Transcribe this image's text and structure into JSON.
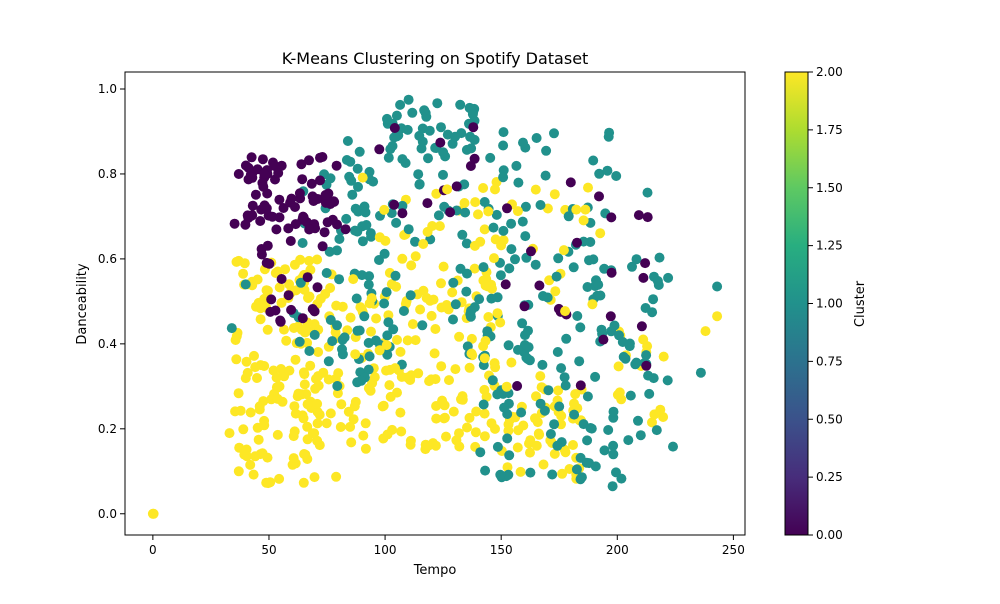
{
  "chart_data": {
    "type": "scatter",
    "title": "K-Means Clustering on Spotify Dataset",
    "xlabel": "Tempo",
    "ylabel": "Danceability",
    "xlim": [
      -12,
      255
    ],
    "ylim": [
      -0.05,
      1.04
    ],
    "x_ticks": [
      0,
      50,
      100,
      150,
      200,
      250
    ],
    "x_tick_labels": [
      "0",
      "50",
      "100",
      "150",
      "200",
      "250"
    ],
    "y_ticks": [
      0.0,
      0.2,
      0.4,
      0.6,
      0.8,
      1.0
    ],
    "y_tick_labels": [
      "0.0",
      "0.2",
      "0.4",
      "0.6",
      "0.8",
      "1.0"
    ],
    "grid": false,
    "legend": "none",
    "colorbar": {
      "label": "Cluster",
      "min": 0.0,
      "max": 2.0,
      "ticks": [
        0.0,
        0.25,
        0.5,
        0.75,
        1.0,
        1.25,
        1.5,
        1.75,
        2.0
      ],
      "tick_labels": [
        "0.00",
        "0.25",
        "0.50",
        "0.75",
        "1.00",
        "1.25",
        "1.50",
        "1.75",
        "2.00"
      ],
      "colormap": "viridis"
    },
    "cluster_colors": [
      "#440154",
      "#21918c",
      "#fde725"
    ],
    "clusters": [
      {
        "id": 0,
        "regions": [
          {
            "x_range": [
              35,
              80
            ],
            "y_range": [
              0.68,
              0.84
            ],
            "weight": 70
          },
          {
            "x_range": [
              45,
              75
            ],
            "y_range": [
              0.45,
              0.68
            ],
            "weight": 25
          },
          {
            "x_range": [
              150,
              215
            ],
            "y_range": [
              0.3,
              0.78
            ],
            "weight": 20
          },
          {
            "x_range": [
              90,
              140
            ],
            "y_range": [
              0.7,
              0.92
            ],
            "weight": 10
          }
        ],
        "points": [
          [
            138,
            0.91
          ],
          [
            83,
            0.67
          ],
          [
            128,
            0.71
          ],
          [
            180,
            0.78
          ],
          [
            212,
            0.59
          ],
          [
            194,
            0.41
          ],
          [
            73,
            0.84
          ],
          [
            48,
            0.8
          ]
        ]
      },
      {
        "id": 1,
        "regions": [
          {
            "x_range": [
              80,
              200
            ],
            "y_range": [
              0.35,
              0.92
            ],
            "weight": 160
          },
          {
            "x_range": [
              100,
              140
            ],
            "y_range": [
              0.85,
              0.98
            ],
            "weight": 40
          },
          {
            "x_range": [
              140,
              210
            ],
            "y_range": [
              0.08,
              0.45
            ],
            "weight": 80
          },
          {
            "x_range": [
              60,
              100
            ],
            "y_range": [
              0.3,
              0.85
            ],
            "weight": 50
          },
          {
            "x_range": [
              200,
              222
            ],
            "y_range": [
              0.15,
              0.65
            ],
            "weight": 20
          }
        ],
        "points": [
          [
            243,
            0.535
          ],
          [
            236,
            0.332
          ],
          [
            224,
            0.158
          ],
          [
            213,
            0.756
          ],
          [
            34,
            0.437
          ],
          [
            40,
            0.54
          ],
          [
            217,
            0.197
          ],
          [
            198,
            0.065
          ]
        ]
      },
      {
        "id": 2,
        "regions": [
          {
            "x_range": [
              35,
              80
            ],
            "y_range": [
              0.07,
              0.6
            ],
            "weight": 170
          },
          {
            "x_range": [
              80,
              150
            ],
            "y_range": [
              0.15,
              0.55
            ],
            "weight": 120
          },
          {
            "x_range": [
              150,
              185
            ],
            "y_range": [
              0.08,
              0.3
            ],
            "weight": 50
          },
          {
            "x_range": [
              100,
              180
            ],
            "y_range": [
              0.5,
              0.8
            ],
            "weight": 30
          },
          {
            "x_range": [
              200,
              222
            ],
            "y_range": [
              0.2,
              0.45
            ],
            "weight": 15
          }
        ],
        "points": [
          [
            0,
            0.0
          ],
          [
            0.3,
            0.0
          ],
          [
            243,
            0.465
          ],
          [
            238,
            0.43
          ],
          [
            220,
            0.37
          ],
          [
            36,
            0.593
          ],
          [
            33,
            0.19
          ],
          [
            37,
            0.1
          ]
        ]
      }
    ]
  }
}
